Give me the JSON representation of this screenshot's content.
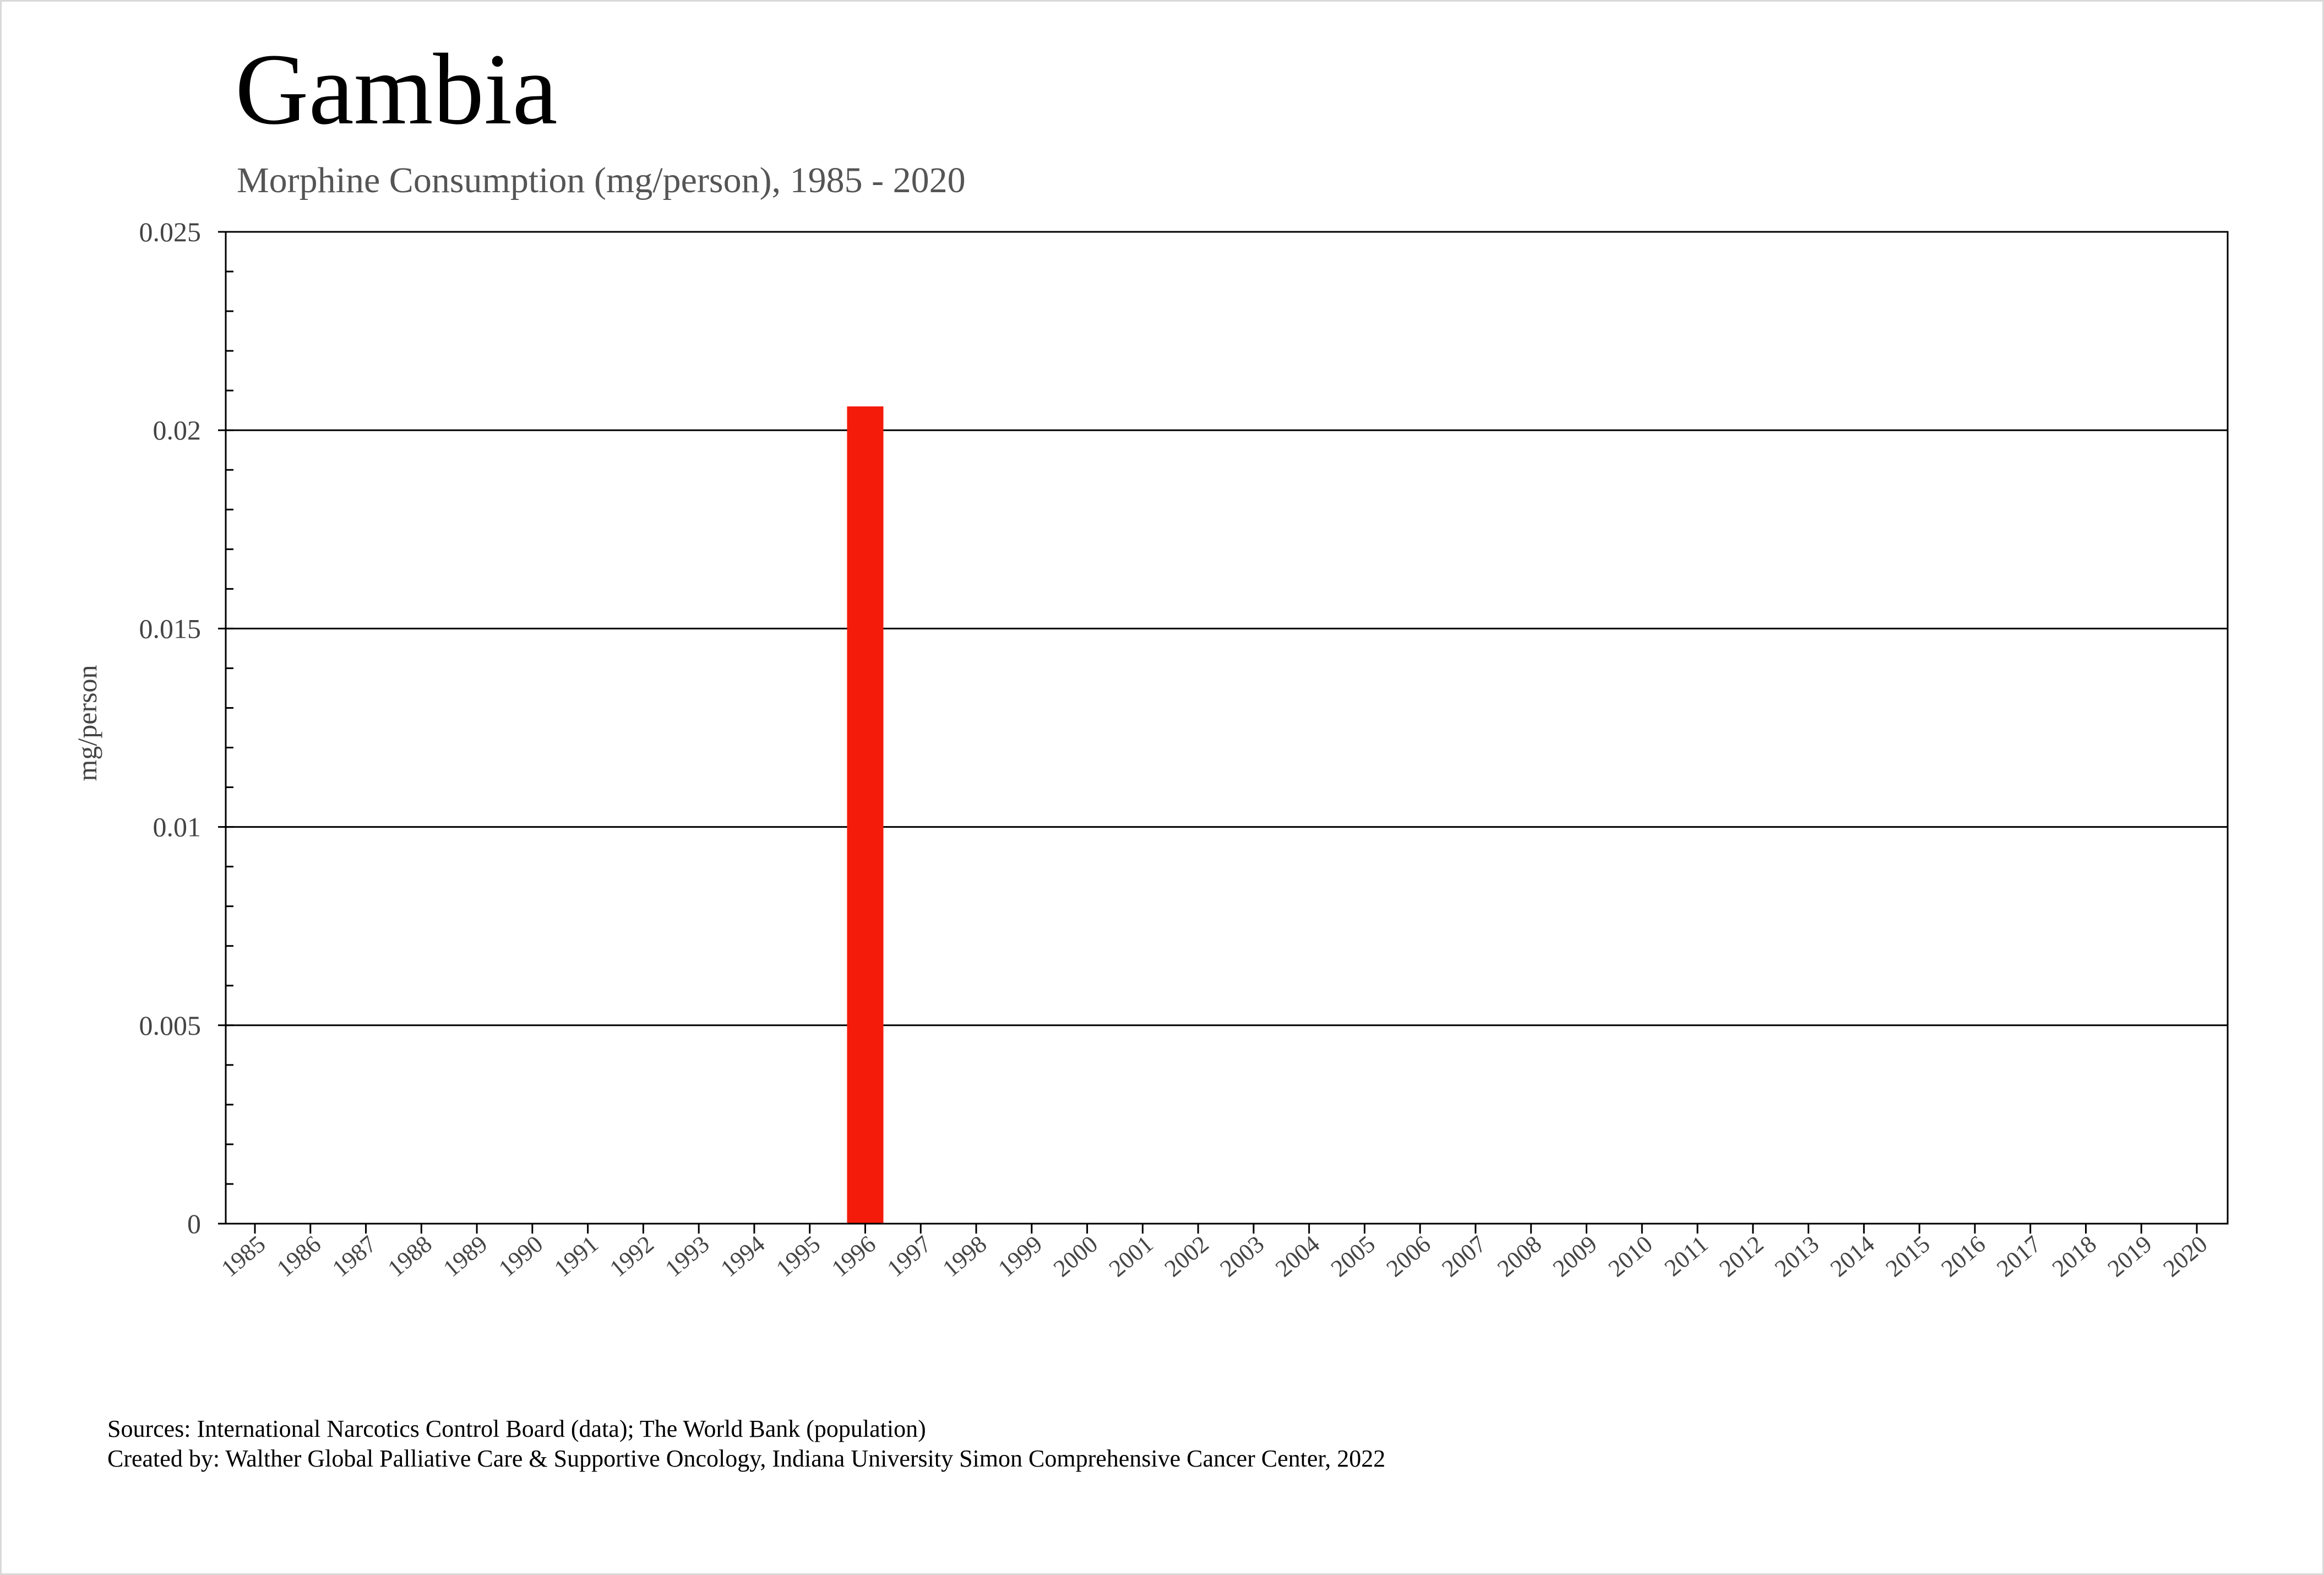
{
  "header": {
    "title": "Gambia",
    "subtitle": "Morphine Consumption (mg/person), 1985 - 2020"
  },
  "footer": {
    "sources": "Sources: International Narcotics Control Board (data); The World Bank (population)",
    "created_by": "Created by: Walther  Global Palliative Care & Supportive Oncology, Indiana University Simon Comprehensive Cancer Center, 2022"
  },
  "chart_data": {
    "type": "bar",
    "title": "Gambia",
    "subtitle": "Morphine Consumption (mg/person), 1985 - 2020",
    "xlabel": "",
    "ylabel": "mg/person",
    "ylim": [
      0,
      0.025
    ],
    "yticks": [
      "0",
      "0.005",
      "0.01",
      "0.015",
      "0.02",
      "0.025"
    ],
    "grid": true,
    "bar_color": "#f51b0b",
    "categories": [
      "1985",
      "1986",
      "1987",
      "1988",
      "1989",
      "1990",
      "1991",
      "1992",
      "1993",
      "1994",
      "1995",
      "1996",
      "1997",
      "1998",
      "1999",
      "2000",
      "2001",
      "2002",
      "2003",
      "2004",
      "2005",
      "2006",
      "2007",
      "2008",
      "2009",
      "2010",
      "2011",
      "2012",
      "2013",
      "2014",
      "2015",
      "2016",
      "2017",
      "2018",
      "2019",
      "2020"
    ],
    "values": [
      0,
      0,
      0,
      0,
      0,
      0,
      0,
      0,
      0,
      0,
      0,
      0.0206,
      0,
      0,
      0,
      0,
      0,
      0,
      0,
      0,
      0,
      0,
      0,
      0,
      0,
      0,
      0,
      0,
      0,
      0,
      0,
      0,
      0,
      0,
      0,
      0
    ]
  }
}
